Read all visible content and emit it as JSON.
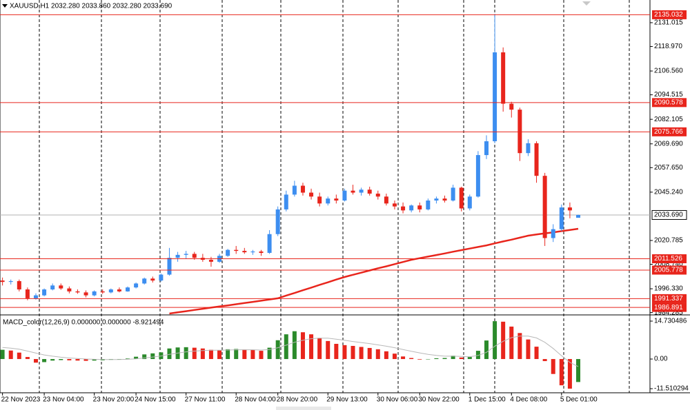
{
  "chart_data": [
    {
      "type": "candlestick",
      "title": "XAUUSD,H1  2032.280 2033.860 2032.280 2033.690",
      "open": [
        2000.5,
        1999.8,
        2000.2,
        1996,
        1991.5,
        1993,
        1996,
        1998,
        1996.5,
        1995,
        1994.5,
        1993,
        1995,
        1994.5,
        1996,
        1995,
        1997,
        1999,
        2001.5,
        2000.5,
        2003.5,
        2012,
        2013.5,
        2014,
        2012,
        2011,
        2010,
        2013,
        2016,
        2015.5,
        2014.8,
        2015.2,
        2014.5,
        2024,
        2036.5,
        2044,
        2048.5,
        2045,
        2043,
        2039.5,
        2042,
        2041,
        2046,
        2045,
        2046.5,
        2044.5,
        2043,
        2039.5,
        2038,
        2036,
        2038.5,
        2036.5,
        2041,
        2042,
        2041,
        2047.5,
        2037,
        2043,
        2064,
        2071,
        2116,
        2090,
        2087,
        2065,
        2070,
        2053.5,
        2022,
        2026.5,
        2037.5,
        2032.28
      ],
      "high": [
        2002,
        2001,
        2001,
        1997,
        1994,
        1996.5,
        1999,
        1999,
        1997.5,
        1996,
        1995.5,
        1995.5,
        1996,
        1996.5,
        1997,
        1997.5,
        1999.5,
        2002,
        2002.5,
        2004,
        2017,
        2015,
        2015.5,
        2015,
        2014,
        2012.5,
        2014,
        2016.5,
        2018,
        2017,
        2016,
        2016,
        2026,
        2038,
        2046,
        2051,
        2050,
        2047,
        2045,
        2043,
        2044,
        2047,
        2049,
        2047.5,
        2048,
        2046,
        2044.5,
        2041,
        2040,
        2039,
        2040,
        2042,
        2043,
        2043.5,
        2049,
        2048,
        2044,
        2066,
        2074,
        2135.5,
        2118.5,
        2091,
        2088,
        2072,
        2071,
        2055,
        2029,
        2039,
        2040,
        2033.86
      ],
      "low": [
        1998,
        1998.5,
        1995,
        1990.5,
        1990.8,
        1992.5,
        1995.5,
        1995.8,
        1994,
        1993.8,
        1992,
        1992.5,
        1993.8,
        1994,
        1994.5,
        1994.8,
        1996.5,
        1998.5,
        1999.5,
        2000,
        2003,
        2010,
        2011.5,
        2011,
        2010,
        2007.5,
        2009.5,
        2012.5,
        2014,
        2014,
        2013.5,
        2013,
        2014,
        2023,
        2035.5,
        2043,
        2043.5,
        2041.5,
        2038,
        2038.5,
        2039.5,
        2040.5,
        2044,
        2043.5,
        2043.5,
        2041.5,
        2038.5,
        2036.5,
        2034.5,
        2035,
        2035,
        2036,
        2039.5,
        2040,
        2040.5,
        2035.5,
        2036,
        2042.5,
        2062,
        2070,
        2086,
        2083,
        2061,
        2063.5,
        2050,
        2018,
        2020,
        2025.5,
        2032,
        2032.28
      ],
      "close": [
        1999.8,
        2000.2,
        1996,
        1991.5,
        1993,
        1996,
        1998,
        1996.5,
        1995,
        1994.5,
        1993,
        1995,
        1994.5,
        1996,
        1995,
        1997,
        1999,
        2001.5,
        2000.5,
        2003.5,
        2012,
        2013.5,
        2014,
        2012,
        2011,
        2010,
        2013,
        2016,
        2015.5,
        2014.8,
        2015.2,
        2014.5,
        2024,
        2036.5,
        2044,
        2048.5,
        2045,
        2043,
        2039.5,
        2042,
        2041,
        2046,
        2045,
        2046.5,
        2044.5,
        2043,
        2039.5,
        2038,
        2036,
        2038.5,
        2036.5,
        2041,
        2042,
        2041,
        2047.5,
        2037,
        2043,
        2064,
        2071,
        2116,
        2090,
        2087,
        2065,
        2070,
        2053.5,
        2022,
        2026.5,
        2037.5,
        2036,
        2033.69
      ],
      "up_color": "#3d8ef0",
      "down_color": "#e8251c",
      "ma": {
        "color": "#e8251c",
        "values": [
          null,
          null,
          null,
          null,
          null,
          null,
          null,
          null,
          null,
          null,
          null,
          null,
          null,
          null,
          null,
          null,
          null,
          null,
          null,
          null,
          1983.8,
          1984.4,
          1985.0,
          1985.6,
          1986.2,
          1986.8,
          1987.4,
          1987.9,
          1988.5,
          1989.1,
          1989.7,
          1990.3,
          1990.9,
          1991.5,
          1992.9,
          1994.2,
          1995.6,
          1996.9,
          1998.3,
          1999.6,
          2001.0,
          2002.3,
          2003.4,
          2004.5,
          2005.6,
          2006.7,
          2007.7,
          2008.8,
          2009.9,
          2011.0,
          2011.8,
          2012.6,
          2013.4,
          2014.2,
          2015.1,
          2015.9,
          2016.7,
          2017.5,
          2018.3,
          2019.3,
          2020.3,
          2021.2,
          2022.2,
          2023.2,
          2023.8,
          2024.4,
          2024.9,
          2025.5,
          2026.1,
          2026.7
        ]
      },
      "levels": [
        2135.032,
        2090.578,
        2075.766,
        2011.526,
        2005.778,
        1991.337,
        1986.891
      ],
      "level_color": "#e8251c",
      "current_price": {
        "value": 2033.69,
        "label": "2033.690"
      },
      "xlim": [
        -0.3,
        77.6
      ],
      "ylim": [
        1983.8,
        2142.5
      ],
      "yticks": [
        2131.015,
        {
          "value": 2118.97,
          "label": "2118.970"
        },
        {
          "value": 2106.56,
          "label": "2106.560"
        },
        2094.515,
        2082.105,
        {
          "value": 2069.69,
          "label": "2069.690"
        },
        {
          "value": 2057.65,
          "label": "2057.650"
        },
        {
          "value": 2045.24,
          "label": "2045.240"
        },
        2020.785,
        {
          "value": 2008.74,
          "label": "2008.740"
        },
        {
          "value": 1996.33,
          "label": "1996.330"
        },
        1984.285
      ]
    },
    {
      "type": "bar",
      "title": "MACD_color(12,26,9) 0.000000 0.000000 -8.921494",
      "values": [
        3.6,
        3.3,
        2.5,
        0.8,
        -1.4,
        -1.2,
        -0.6,
        -0.4,
        -0.5,
        -0.6,
        -0.7,
        -0.6,
        -0.5,
        -0.3,
        -0.2,
        0.2,
        0.9,
        1.8,
        2.2,
        2.6,
        4.1,
        4.5,
        4.6,
        4.4,
        4.1,
        3.6,
        3.5,
        3.8,
        3.9,
        3.7,
        3.5,
        3.2,
        4.4,
        7.3,
        9.6,
        10.8,
        10.4,
        9.6,
        8.2,
        7.0,
        5.9,
        5.4,
        5.1,
        4.7,
        4.3,
        3.8,
        3.0,
        2.1,
        1.0,
        0.4,
        -0.2,
        -0.1,
        0.3,
        0.4,
        1.3,
        0.6,
        0.8,
        3.2,
        7.2,
        14.7,
        14.5,
        12.6,
        10.1,
        7.6,
        4.8,
        -0.8,
        -5.8,
        -10.2,
        -11.5,
        -8.921494
      ],
      "up_color": "#2b8a2b",
      "down_color": "#e8251c",
      "signal": {
        "color": "#b8b8b8",
        "values": [
          4.5,
          4.2,
          3.8,
          3.1,
          2.3,
          1.6,
          1.1,
          0.7,
          0.4,
          0.2,
          0.0,
          -0.1,
          -0.2,
          -0.2,
          -0.2,
          -0.1,
          0.1,
          0.4,
          0.8,
          1.2,
          1.8,
          2.3,
          2.8,
          3.1,
          3.3,
          3.4,
          3.4,
          3.5,
          3.6,
          3.6,
          3.6,
          3.5,
          3.7,
          4.4,
          5.4,
          6.5,
          7.3,
          7.9,
          8.1,
          8.1,
          7.7,
          7.3,
          6.8,
          6.4,
          6.0,
          5.5,
          5.0,
          4.4,
          3.7,
          3.0,
          2.4,
          1.8,
          1.4,
          1.1,
          1.1,
          1.0,
          0.9,
          1.4,
          2.6,
          5.0,
          6.9,
          8.3,
          8.9,
          8.9,
          8.2,
          6.5,
          4.1,
          1.3,
          -1.3,
          -2.9
        ]
      },
      "xlim": [
        -0.3,
        77.6
      ],
      "ylim": [
        -13.1,
        16.6
      ],
      "yticks": [
        14.730486,
        {
          "value": 0,
          "label": "0.00"
        },
        -11.510294
      ],
      "xticks": [
        {
          "value": 0,
          "label": "22 Nov 2023"
        },
        {
          "value": 5,
          "label": "23 Nov 04:00"
        },
        {
          "value": 11,
          "label": "23 Nov 20:00"
        },
        {
          "value": 16,
          "label": "24 Nov 15:00"
        },
        {
          "value": 22,
          "label": "27 Nov 11:00"
        },
        {
          "value": 28,
          "label": "28 Nov 04:00"
        },
        {
          "value": 33,
          "label": "28 Nov 20:00"
        },
        {
          "value": 39,
          "label": "29 Nov 13:00"
        },
        {
          "value": 45,
          "label": "30 Nov 06:00"
        },
        {
          "value": 50,
          "label": "30 Nov 22:00"
        },
        {
          "value": 56,
          "label": "1 Dec 15:00"
        },
        {
          "value": 61,
          "label": "4 Dec 08:00"
        },
        {
          "value": 67,
          "label": "5 Dec 01:00"
        }
      ]
    }
  ]
}
